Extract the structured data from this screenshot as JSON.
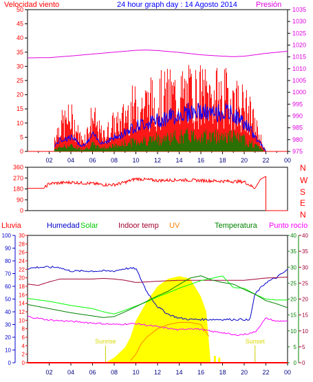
{
  "header": {
    "wind_label": "Velocidad viento",
    "title": "24 hour graph day : 14 Agosto 2014",
    "pressure_label": "Presión"
  },
  "bottom_labels": {
    "rain": "Lluvia",
    "humidity": "Humedad",
    "solar": "Solar",
    "indoor_temp": "Indoor temp",
    "uv": "UV",
    "temperature": "Temperatura",
    "dew_point": "Punto rocío",
    "sunrise": "Sunrise",
    "sunset": "Sunset"
  },
  "colors": {
    "wind_gust": "#ff0000",
    "wind_avg": "#0000ff",
    "wind_area": "#008000",
    "pressure": "#e000e0",
    "direction": "#ff0000",
    "rain": "#ff0000",
    "humidity": "#0000cc",
    "solar": "#00ff00",
    "indoor_temp": "#a00030",
    "uv": "#ffff00",
    "uv_line": "#ff8000",
    "temperature": "#008000",
    "dew_point": "#ff00ff",
    "sun_marker": "#ffff00"
  },
  "chart_data": [
    {
      "type": "area",
      "name": "wind",
      "x_ticks": [
        "02",
        "04",
        "06",
        "08",
        "10",
        "12",
        "14",
        "16",
        "18",
        "20",
        "22",
        "00"
      ],
      "y_ticks": [
        "0",
        "5",
        "10",
        "15",
        "20",
        "25",
        "30",
        "35",
        "40",
        "45",
        "50"
      ],
      "y2_ticks": [
        "975",
        "980",
        "985",
        "990",
        "995",
        "1000",
        "1005",
        "1010",
        "1015",
        "1020",
        "1025",
        "1030",
        "1035"
      ],
      "ylim": [
        0,
        50
      ],
      "y2lim": [
        975,
        1035
      ],
      "xlim": [
        0,
        24
      ],
      "gust_envelope": {
        "x": [
          2.5,
          3,
          4,
          5,
          5.5,
          6,
          6.5,
          7,
          8,
          8.5,
          9,
          9.5,
          10,
          11,
          12,
          13,
          14,
          15,
          16,
          17,
          18,
          19,
          20,
          20.5,
          21,
          21.5,
          22
        ],
        "y": [
          8,
          14,
          18,
          6,
          10,
          19,
          12,
          8,
          15,
          14,
          20,
          23,
          24,
          26,
          28,
          30,
          30,
          31,
          31,
          30,
          30,
          29,
          24,
          20,
          14,
          7,
          0
        ]
      },
      "avg_envelope": {
        "x": [
          2.5,
          3,
          4,
          5,
          5.5,
          6,
          6.5,
          7,
          8,
          8.5,
          9,
          9.5,
          10,
          11,
          12,
          13,
          14,
          15,
          16,
          17,
          18,
          19,
          20,
          20.5,
          21,
          21.5,
          22
        ],
        "y": [
          2,
          4,
          5,
          2,
          3,
          6,
          4,
          3,
          5,
          5,
          7,
          8,
          9,
          10,
          11,
          12,
          13,
          14,
          14,
          13,
          14,
          13,
          10,
          8,
          5,
          3,
          0
        ]
      },
      "pressure_curve": {
        "x": [
          0,
          2,
          4,
          6,
          8,
          10,
          11,
          12,
          14,
          16,
          18,
          19,
          20,
          22,
          24
        ],
        "y": [
          1014.6,
          1014.7,
          1015.4,
          1016.2,
          1017.0,
          1017.8,
          1017.9,
          1017.7,
          1016.9,
          1015.9,
          1015.3,
          1015.1,
          1015.3,
          1016.5,
          1017.4
        ]
      }
    },
    {
      "type": "line",
      "name": "wind direction",
      "y_ticks": [
        "0",
        "90",
        "180",
        "270",
        "360"
      ],
      "y_side_labels": [
        "N",
        "W",
        "S",
        "E",
        "N"
      ],
      "ylim": [
        0,
        360
      ],
      "x": [
        0,
        1.5,
        2,
        4,
        6,
        7,
        8,
        9,
        10,
        12,
        14,
        16,
        18,
        20,
        21,
        21.5,
        22
      ],
      "y": [
        185,
        185,
        225,
        235,
        225,
        215,
        215,
        235,
        265,
        250,
        255,
        250,
        245,
        240,
        185,
        260,
        285
      ]
    },
    {
      "type": "line",
      "name": "temperature panel",
      "x_ticks": [
        "02",
        "04",
        "06",
        "08",
        "10",
        "12",
        "14",
        "16",
        "18",
        "20",
        "22",
        "00"
      ],
      "humidity_ticks": [
        "0",
        "10",
        "20",
        "30",
        "40",
        "50",
        "60",
        "70",
        "80",
        "90",
        "100"
      ],
      "rain_ticks": [
        "0",
        "2",
        "4",
        "6",
        "8",
        "10",
        "12",
        "14",
        "16",
        "18",
        "20",
        "22",
        "24",
        "26",
        "28",
        "30"
      ],
      "temp_ticks": [
        "0",
        "5",
        "10",
        "15",
        "20",
        "25",
        "30",
        "35",
        "40"
      ],
      "dew_ticks": [
        "0",
        "5",
        "10",
        "15",
        "20",
        "25",
        "30",
        "35",
        "40"
      ],
      "series": [
        {
          "name": "Humedad",
          "axis": "humidity",
          "x": [
            0,
            1,
            2,
            3,
            3.5,
            4,
            6,
            8,
            9,
            10,
            11,
            12,
            13,
            14,
            15,
            16,
            17,
            18,
            19,
            20,
            20.5,
            21,
            22,
            23,
            24
          ],
          "y": [
            74,
            75,
            75,
            75,
            73,
            72,
            72,
            72,
            74,
            74,
            56,
            44,
            38,
            35,
            34,
            34,
            34,
            34,
            34,
            34,
            33,
            54,
            63,
            67,
            73
          ]
        },
        {
          "name": "Indoor temp",
          "axis": "temp",
          "x": [
            0,
            1,
            2,
            3,
            4,
            5,
            6,
            7,
            8,
            9,
            10,
            12,
            14,
            16,
            18,
            20,
            22,
            24
          ],
          "y": [
            24.7,
            24.3,
            25.4,
            26.3,
            26.3,
            26.3,
            26.3,
            26.5,
            26.3,
            25.9,
            25.2,
            25.6,
            25.9,
            25.9,
            25.9,
            25.9,
            26.6,
            26.9
          ]
        },
        {
          "name": "Solar",
          "axis": "temp",
          "x": [
            0,
            2,
            4,
            6,
            7,
            8,
            9,
            10,
            11,
            12,
            13,
            14,
            15,
            16,
            17,
            18,
            19,
            20,
            21,
            22,
            23,
            24
          ],
          "y": [
            20.2,
            19.3,
            18.0,
            17.0,
            16.0,
            15.3,
            16.5,
            17.8,
            19.1,
            20.7,
            22.0,
            23.4,
            24.6,
            25.8,
            26.5,
            27.3,
            23.6,
            23.4,
            21.5,
            20.0,
            19.7,
            19.7
          ]
        },
        {
          "name": "Temperatura",
          "axis": "temp",
          "x": [
            0,
            2,
            4,
            6,
            7,
            8,
            9,
            10,
            11,
            12,
            13,
            14,
            15,
            16,
            17,
            18,
            19,
            20,
            21,
            22,
            23,
            24
          ],
          "y": [
            18.3,
            17.0,
            15.7,
            14.7,
            14.2,
            14.5,
            16.0,
            17.6,
            19.3,
            21.0,
            22.5,
            24.6,
            26.6,
            27.3,
            26.0,
            25.2,
            24.7,
            23.0,
            21.5,
            19.5,
            18.5,
            17.3
          ]
        },
        {
          "name": "Punto rocío",
          "axis": "temp",
          "x": [
            0,
            2,
            4,
            6,
            8,
            10,
            12,
            14,
            15,
            16,
            17,
            18,
            19,
            20,
            21,
            22,
            23,
            24
          ],
          "y": [
            14.5,
            13.4,
            13.0,
            12.5,
            12.0,
            12.3,
            11.3,
            10.3,
            10.8,
            10.5,
            9.8,
            9.5,
            8.7,
            8.9,
            9.6,
            14.0,
            13.0,
            13.2
          ]
        },
        {
          "name": "UV",
          "axis": "rain",
          "x": [
            9.5,
            10,
            10.5,
            11,
            12,
            13,
            14,
            15,
            16,
            16.8
          ],
          "y": [
            0.5,
            2,
            4.5,
            6,
            8,
            9,
            9.5,
            9.5,
            9,
            6
          ]
        },
        {
          "name": "Lluvia",
          "axis": "rain",
          "x": [
            0,
            24
          ],
          "y": [
            0,
            0
          ]
        }
      ],
      "solar_area": {
        "x": [
          7.2,
          8,
          9,
          9.5,
          10,
          11,
          12,
          13,
          14,
          15,
          16,
          16.5,
          16.9
        ],
        "y": [
          0,
          4,
          12,
          20,
          33,
          48,
          60,
          66,
          68,
          66,
          52,
          40,
          0
        ]
      },
      "sunrise_hour": 7.2,
      "sunset_hour": 21.0
    }
  ]
}
